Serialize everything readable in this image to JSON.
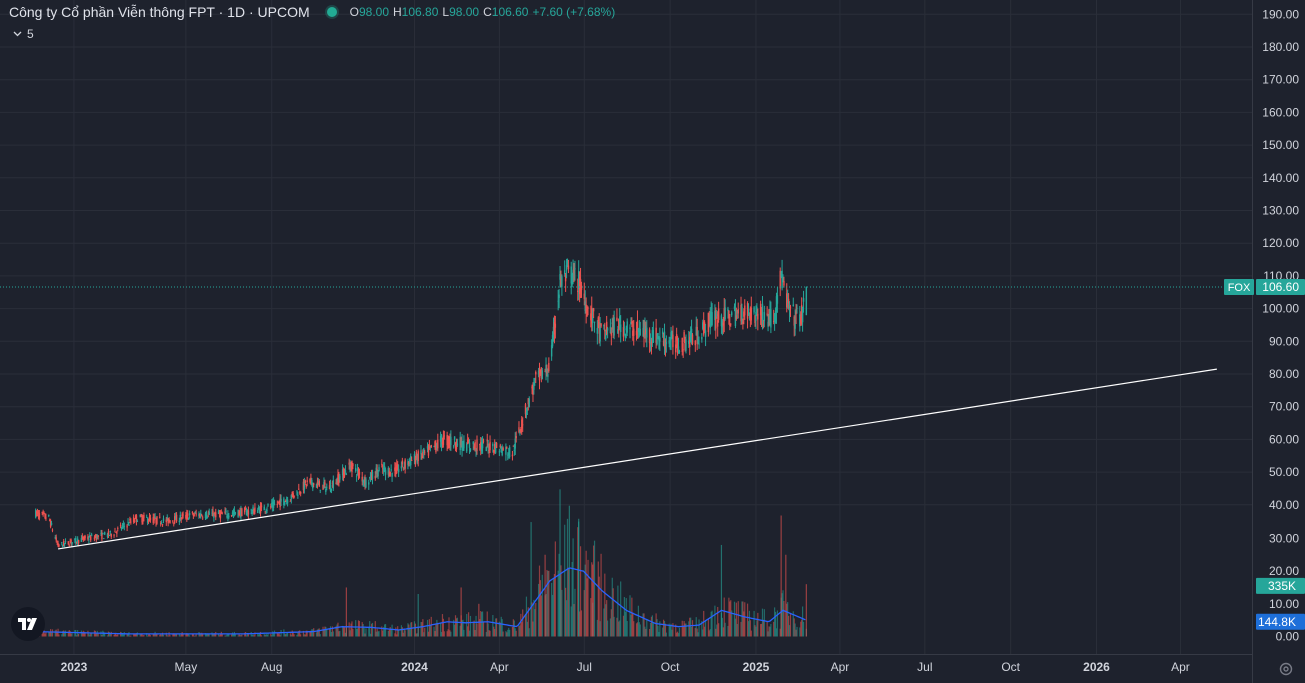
{
  "header": {
    "title": "Công ty Cổ phần Viễn thông FPT · 1D · UPCOM",
    "ohlc": {
      "o_label": "O",
      "o_value": "98.00",
      "h_label": "H",
      "h_value": "106.80",
      "l_label": "L",
      "l_value": "98.00",
      "c_label": "C",
      "c_value": "106.60",
      "change": "+7.60 (+7.68%)"
    }
  },
  "indicator_toggle": {
    "label": "5"
  },
  "colors": {
    "up": "#26a69a",
    "down": "#ef5350",
    "background": "#1e222d",
    "grid": "#2a2e39",
    "ma_line": "#2962ff",
    "trendline": "#ffffff",
    "price_badge": "#26a69a",
    "volume_badge": "#1e6fd9"
  },
  "icons": {
    "logo": "tradingview-logo-icon",
    "toggle": "chevron-down-icon",
    "settings": "gear-icon"
  },
  "chart_data": {
    "type": "candlestick",
    "symbol": "FOX",
    "last_price": 106.6,
    "last_price_label": "106.60",
    "price_axis": {
      "ticks": [
        "190.00",
        "180.00",
        "170.00",
        "160.00",
        "150.00",
        "140.00",
        "130.00",
        "120.00",
        "110.00",
        "100.00",
        "90.00",
        "80.00",
        "70.00",
        "60.00",
        "50.00",
        "40.00"
      ],
      "range": [
        30,
        190
      ]
    },
    "volume_axis": {
      "ticks": [
        "30.00",
        "20.00",
        "10.00",
        "0.00"
      ],
      "range": [
        0,
        30
      ]
    },
    "x_axis": {
      "ticks": [
        "2023",
        "May",
        "Aug",
        "2024",
        "Apr",
        "Jul",
        "Oct",
        "2025",
        "Apr",
        "Jul",
        "Oct",
        "2026",
        "Apr"
      ]
    },
    "price_path": [
      [
        "2022-11-20",
        37.5
      ],
      [
        "2022-12-05",
        36
      ],
      [
        "2022-12-15",
        27.5
      ],
      [
        "2023-01-10",
        29.5
      ],
      [
        "2023-02-10",
        31
      ],
      [
        "2023-03-10",
        36
      ],
      [
        "2023-04-10",
        35
      ],
      [
        "2023-05-10",
        37
      ],
      [
        "2023-06-10",
        37
      ],
      [
        "2023-07-10",
        38
      ],
      [
        "2023-08-01",
        39.5
      ],
      [
        "2023-08-20",
        42
      ],
      [
        "2023-09-10",
        47
      ],
      [
        "2023-10-01",
        45
      ],
      [
        "2023-10-25",
        52
      ],
      [
        "2023-11-10",
        47
      ],
      [
        "2023-11-25",
        51
      ],
      [
        "2023-12-10",
        50
      ],
      [
        "2023-12-25",
        53
      ],
      [
        "2024-01-15",
        56
      ],
      [
        "2024-02-01",
        60
      ],
      [
        "2024-03-01",
        58
      ],
      [
        "2024-03-25",
        58
      ],
      [
        "2024-04-15",
        56
      ],
      [
        "2024-04-25",
        65
      ],
      [
        "2024-05-10",
        78
      ],
      [
        "2024-05-25",
        82
      ],
      [
        "2024-06-05",
        108
      ],
      [
        "2024-06-15",
        111
      ],
      [
        "2024-06-25",
        108
      ],
      [
        "2024-07-05",
        100
      ],
      [
        "2024-07-20",
        92
      ],
      [
        "2024-08-05",
        95
      ],
      [
        "2024-09-01",
        93
      ],
      [
        "2024-09-20",
        91
      ],
      [
        "2024-10-10",
        89
      ],
      [
        "2024-11-01",
        92
      ],
      [
        "2024-11-15",
        97
      ],
      [
        "2024-12-01",
        97
      ],
      [
        "2024-12-20",
        99
      ],
      [
        "2025-01-10",
        98
      ],
      [
        "2025-01-20",
        97
      ],
      [
        "2025-01-28",
        110
      ],
      [
        "2025-02-05",
        100
      ],
      [
        "2025-02-12",
        97
      ],
      [
        "2025-02-20",
        98
      ],
      [
        "2025-02-24",
        106.6
      ]
    ],
    "volume_ma_path": [
      [
        "2022-11-20",
        1.5
      ],
      [
        "2023-03-01",
        0.8
      ],
      [
        "2023-07-01",
        0.8
      ],
      [
        "2023-09-15",
        1.5
      ],
      [
        "2023-10-15",
        3
      ],
      [
        "2023-11-15",
        2.8
      ],
      [
        "2023-12-15",
        2
      ],
      [
        "2024-01-10",
        3
      ],
      [
        "2024-02-05",
        4.5
      ],
      [
        "2024-02-25",
        4.2
      ],
      [
        "2024-03-20",
        4.5
      ],
      [
        "2024-04-20",
        3
      ],
      [
        "2024-05-10",
        11
      ],
      [
        "2024-05-25",
        17
      ],
      [
        "2024-06-15",
        21
      ],
      [
        "2024-06-30",
        20
      ],
      [
        "2024-07-20",
        14
      ],
      [
        "2024-08-15",
        8
      ],
      [
        "2024-09-15",
        4
      ],
      [
        "2024-10-10",
        3
      ],
      [
        "2024-11-01",
        3.5
      ],
      [
        "2024-11-25",
        8
      ],
      [
        "2024-12-20",
        6
      ],
      [
        "2025-01-15",
        4.5
      ],
      [
        "2025-01-30",
        8
      ],
      [
        "2025-02-24",
        5
      ]
    ],
    "volume_spikes": [
      [
        "2023-10-20",
        15
      ],
      [
        "2024-01-05",
        13
      ],
      [
        "2024-02-20",
        15
      ],
      [
        "2024-03-10",
        10
      ],
      [
        "2024-05-05",
        35
      ],
      [
        "2024-05-20",
        25
      ],
      [
        "2024-06-05",
        45
      ],
      [
        "2024-06-15",
        40
      ],
      [
        "2024-06-25",
        36
      ],
      [
        "2024-07-10",
        22
      ],
      [
        "2024-11-25",
        28
      ],
      [
        "2025-01-28",
        37
      ],
      [
        "2025-02-02",
        25
      ],
      [
        "2025-02-24",
        16
      ]
    ],
    "trendline": {
      "from": [
        "2022-12-15",
        26.5
      ],
      "to": [
        "2026-05-10",
        81.5
      ]
    },
    "volume_badges": [
      {
        "label": "335K",
        "value": 15.5
      },
      {
        "label": "144.8K",
        "value": 4.5
      }
    ]
  }
}
